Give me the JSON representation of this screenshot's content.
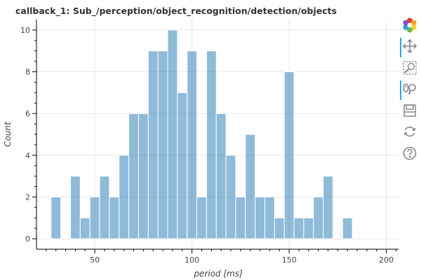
{
  "title": "callback_1: Sub_/perception/object_recognition/detection/objects",
  "chart_data": {
    "type": "bar",
    "xlabel": "period [ms]",
    "ylabel": "Count",
    "xlim": [
      20,
      207
    ],
    "ylim": [
      -0.5,
      10.5
    ],
    "bin_width": 5,
    "x_ticks": [
      50,
      100,
      150,
      200
    ],
    "y_ticks": [
      0,
      2,
      4,
      6,
      8,
      10
    ],
    "x_tick_labels": [
      "50",
      "100",
      "150",
      "200"
    ],
    "y_tick_labels": [
      "0",
      "2",
      "4",
      "6",
      "8",
      "10"
    ],
    "grid": true,
    "bar_color": "#1f77b4",
    "bar_opacity": 0.5,
    "bins": [
      {
        "left": 27.5,
        "value": 2
      },
      {
        "left": 32.5,
        "value": 0
      },
      {
        "left": 37.5,
        "value": 3
      },
      {
        "left": 42.5,
        "value": 1
      },
      {
        "left": 47.5,
        "value": 2
      },
      {
        "left": 52.5,
        "value": 3
      },
      {
        "left": 57.5,
        "value": 2
      },
      {
        "left": 62.5,
        "value": 4
      },
      {
        "left": 67.5,
        "value": 6
      },
      {
        "left": 72.5,
        "value": 6
      },
      {
        "left": 77.5,
        "value": 9
      },
      {
        "left": 82.5,
        "value": 9
      },
      {
        "left": 87.5,
        "value": 10
      },
      {
        "left": 92.5,
        "value": 7
      },
      {
        "left": 97.5,
        "value": 9
      },
      {
        "left": 102.5,
        "value": 2
      },
      {
        "left": 107.5,
        "value": 9
      },
      {
        "left": 112.5,
        "value": 6
      },
      {
        "left": 117.5,
        "value": 4
      },
      {
        "left": 122.5,
        "value": 2
      },
      {
        "left": 127.5,
        "value": 5
      },
      {
        "left": 132.5,
        "value": 2
      },
      {
        "left": 137.5,
        "value": 2
      },
      {
        "left": 142.5,
        "value": 1
      },
      {
        "left": 147.5,
        "value": 8
      },
      {
        "left": 152.5,
        "value": 1
      },
      {
        "left": 157.5,
        "value": 1
      },
      {
        "left": 162.5,
        "value": 2
      },
      {
        "left": 167.5,
        "value": 3
      },
      {
        "left": 172.5,
        "value": 0
      },
      {
        "left": 177.5,
        "value": 1
      },
      {
        "left": 182.5,
        "value": 0
      }
    ]
  },
  "toolbar": {
    "tools": [
      {
        "name": "bokeh-logo-icon",
        "active": false,
        "interactive": true
      },
      {
        "name": "pan-tool-icon",
        "active": true,
        "interactive": true
      },
      {
        "name": "box-zoom-tool-icon",
        "active": false,
        "interactive": true
      },
      {
        "name": "wheel-zoom-tool-icon",
        "active": true,
        "interactive": true
      },
      {
        "name": "save-tool-icon",
        "active": false,
        "interactive": true
      },
      {
        "name": "reset-tool-icon",
        "active": false,
        "interactive": true
      },
      {
        "name": "help-tool-icon",
        "active": false,
        "interactive": true
      }
    ]
  }
}
